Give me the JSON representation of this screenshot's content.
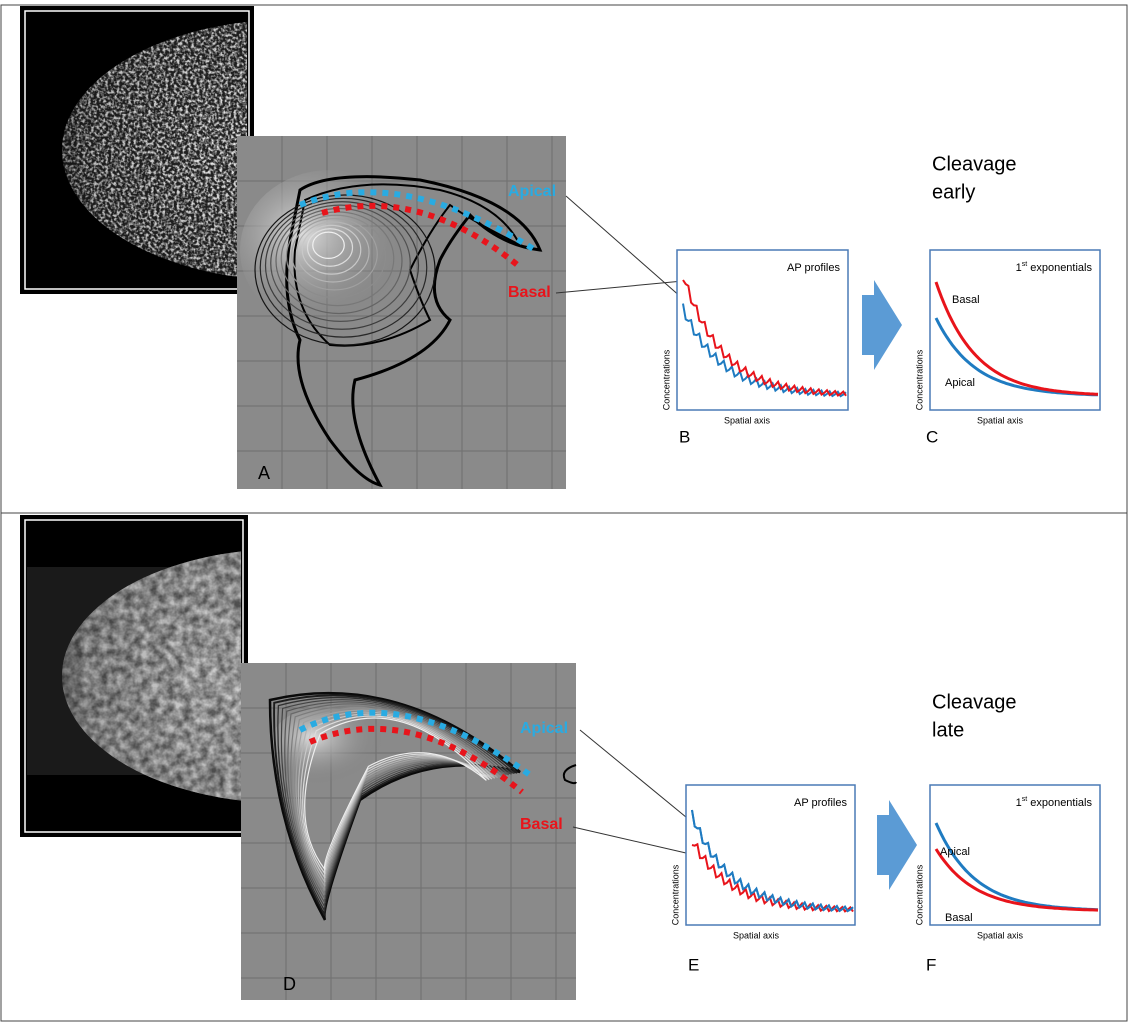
{
  "panels": [
    {
      "image_letter": "A",
      "apical_label": "Apical",
      "basal_label": "Basal",
      "stage": [
        "Cleavage",
        "early"
      ],
      "profiles": {
        "title": "AP profiles",
        "y_label": "Concentrations",
        "x_label": "Spatial axis",
        "letter": "B"
      },
      "exponentials": {
        "title_number": "1",
        "title_superscript": "st",
        "title_text": "exponentials",
        "curve_labels": [
          "Basal",
          "Apical"
        ],
        "y_label": "Concentrations",
        "x_label": "Spatial axis",
        "letter": "C"
      }
    },
    {
      "image_letter": "D",
      "apical_label": "Apical",
      "basal_label": "Basal",
      "stage": [
        "Cleavage",
        "late"
      ],
      "profiles": {
        "title": "AP profiles",
        "y_label": "Concentrations",
        "x_label": "Spatial axis",
        "letter": "E"
      },
      "exponentials": {
        "title_number": "1",
        "title_superscript": "st",
        "title_text": "exponentials",
        "curve_labels": [
          "Apical",
          "Basal"
        ],
        "y_label": "Concentrations",
        "x_label": "Spatial axis",
        "letter": "F"
      }
    }
  ]
}
